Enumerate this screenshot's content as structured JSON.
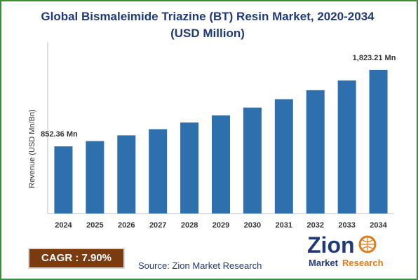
{
  "chart_data": {
    "type": "bar",
    "title_line1": "Global Bismaleimide Triazine (BT) Resin Market, 2020-2034",
    "title_line2": "(USD Million)",
    "ylabel": "Revenue (USD Mn/Bn)",
    "xlabel": "",
    "categories": [
      "2024",
      "2025",
      "2026",
      "2027",
      "2028",
      "2029",
      "2030",
      "2031",
      "2032",
      "2033",
      "2034"
    ],
    "values": [
      852.36,
      919.7,
      992.3,
      1070.7,
      1155.3,
      1246.6,
      1345.1,
      1451.3,
      1566.0,
      1689.7,
      1823.21
    ],
    "data_labels": [
      {
        "index": 0,
        "text": "852.36 Mn"
      },
      {
        "index": 10,
        "text": "1,823.21 Mn"
      }
    ],
    "ylim": [
      0,
      2000
    ],
    "grid": false,
    "bar_color": "#2e6fad"
  },
  "cagr": {
    "text": "CAGR : 7.90%",
    "color": "#7a3b10"
  },
  "source": {
    "text": "Source: Zion Market Research"
  },
  "logo": {
    "word1": "Zion",
    "word2": "Market",
    "word3": "Research",
    "color_blue": "#1f3a7a",
    "color_orange": "#e07b1a"
  }
}
